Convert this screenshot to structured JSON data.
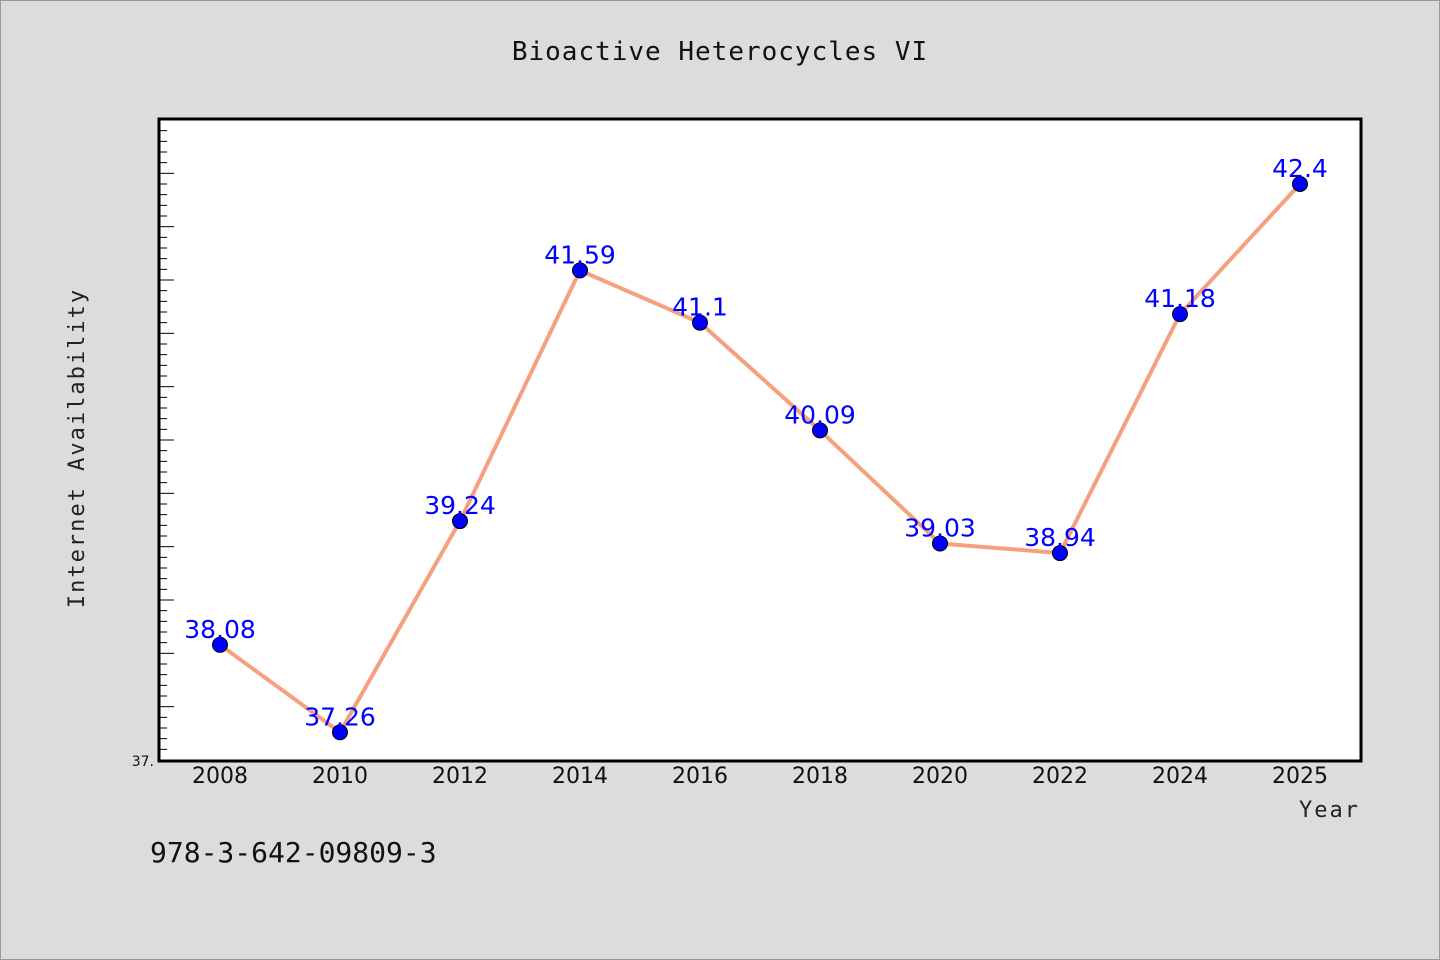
{
  "chart_data": {
    "type": "line",
    "title": "Bioactive Heterocycles VI",
    "xlabel": "Year",
    "ylabel": "Internet Availability",
    "categories": [
      "2008",
      "2010",
      "2012",
      "2014",
      "2016",
      "2018",
      "2020",
      "2022",
      "2024",
      "2025"
    ],
    "series": [
      {
        "values": [
          38.08,
          37.26,
          39.24,
          41.59,
          41.1,
          40.09,
          39.03,
          38.94,
          41.18,
          42.4
        ]
      }
    ],
    "data_labels": [
      "38.08",
      "37.26",
      "39.24",
      "41.59",
      "41.1",
      "40.09",
      "39.03",
      "38.94",
      "41.18",
      "42.4"
    ],
    "ylim": [
      37.0,
      43.0
    ],
    "y_min_tick_label": "37.",
    "grid": false,
    "legend": "none",
    "colors": {
      "line": "#f5a07e",
      "marker": "#0000ff",
      "data_label": "#0000ff",
      "plot_background": "#ffffff",
      "page_background": "#dcdcdc"
    }
  },
  "footnote": "978-3-642-09809-3"
}
